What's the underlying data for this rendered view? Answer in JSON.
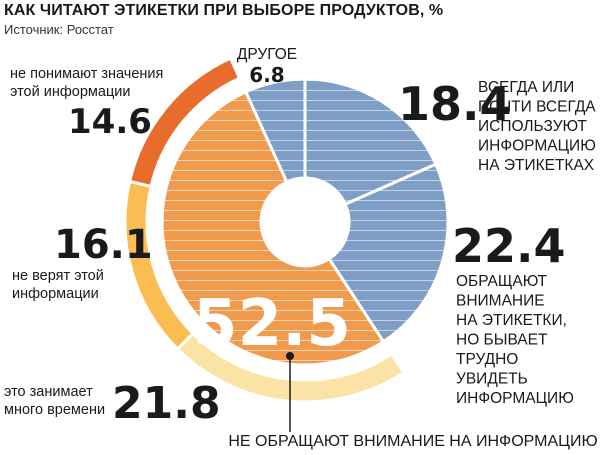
{
  "header": {
    "title": "КАК ЧИТАЮТ ЭТИКЕТКИ ПРИ ВЫБОРЕ ПРОДУКТОВ, %",
    "source": "Источник: Росстат"
  },
  "chart_data": {
    "type": "pie",
    "title": "КАК ЧИТАЮТ ЭТИКЕТКИ ПРИ ВЫБОРЕ ПРОДУКТОВ, %",
    "slices": [
      {
        "value": 18.4,
        "value_label": "18.4",
        "label_lines": [
          "ВСЕГДА ИЛИ",
          "ПОЧТИ ВСЕГДА",
          "ИСПОЛЬЗУЮТ",
          "ИНФОРМАЦИЮ",
          "НА ЭТИКЕТКАХ"
        ],
        "color": "#7f9ec6"
      },
      {
        "value": 22.4,
        "value_label": "22.4",
        "label_lines": [
          "ОБРАЩАЮТ",
          "ВНИМАНИЕ",
          "НА ЭТИКЕТКИ,",
          "НО БЫВАЕТ",
          "ТРУДНО",
          "УВИДЕТЬ",
          "ИНФОРМАЦИЮ"
        ],
        "color": "#7f9ec6"
      },
      {
        "value": 52.5,
        "value_label": "52.5",
        "label_lines": [
          "НЕ ОБРАЩАЮТ ВНИМАНИЕ НА ИНФОРМАЦИЮ"
        ],
        "color": "#ef9a4d"
      },
      {
        "value": 6.8,
        "value_label": "6.8",
        "label_lines": [
          "ДРУГОЕ"
        ],
        "color": "#7f9ec6"
      }
    ],
    "sub_breakdown": {
      "of": "НЕ ОБРАЩАЮТ ВНИМАНИЕ НА ИНФОРМАЦИЮ",
      "items": [
        {
          "value": 21.8,
          "value_label": "21.8",
          "label_lines": [
            "это занимает",
            "много времени"
          ],
          "color": "#fbe3a6"
        },
        {
          "value": 16.1,
          "value_label": "16.1",
          "label_lines": [
            "не верят этой",
            "информации"
          ],
          "color": "#fbbd52"
        },
        {
          "value": 14.6,
          "value_label": "14.6",
          "label_lines": [
            "не понимают значения",
            "этой информации"
          ],
          "color": "#e86d2c"
        }
      ]
    }
  }
}
